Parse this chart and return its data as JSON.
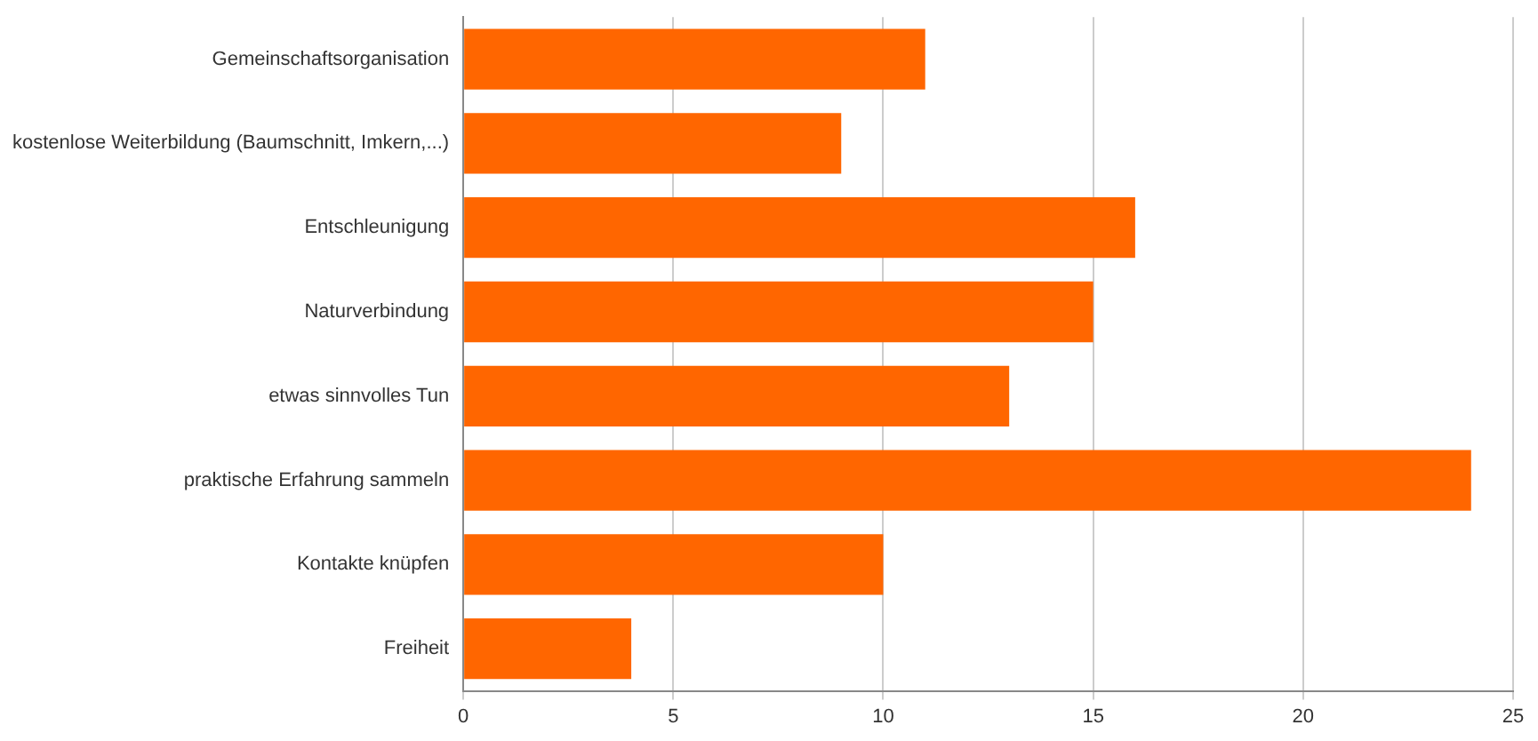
{
  "chart_data": {
    "type": "bar",
    "orientation": "horizontal",
    "categories": [
      "Gemeinschaftsorganisation",
      "kostenlose Weiterbildung (Baumschnitt, Imkern,...)",
      "Entschleunigung",
      "Naturverbindung",
      "etwas sinnvolles Tun",
      "praktische Erfahrung sammeln",
      "Kontakte knüpfen",
      "Freiheit"
    ],
    "values": [
      11,
      9,
      16,
      15,
      13,
      24,
      10,
      4
    ],
    "color": "#ff6600",
    "xlim": [
      0,
      25
    ],
    "xticks": [
      0,
      5,
      10,
      15,
      20,
      25
    ],
    "grid": "x",
    "legend": false
  }
}
